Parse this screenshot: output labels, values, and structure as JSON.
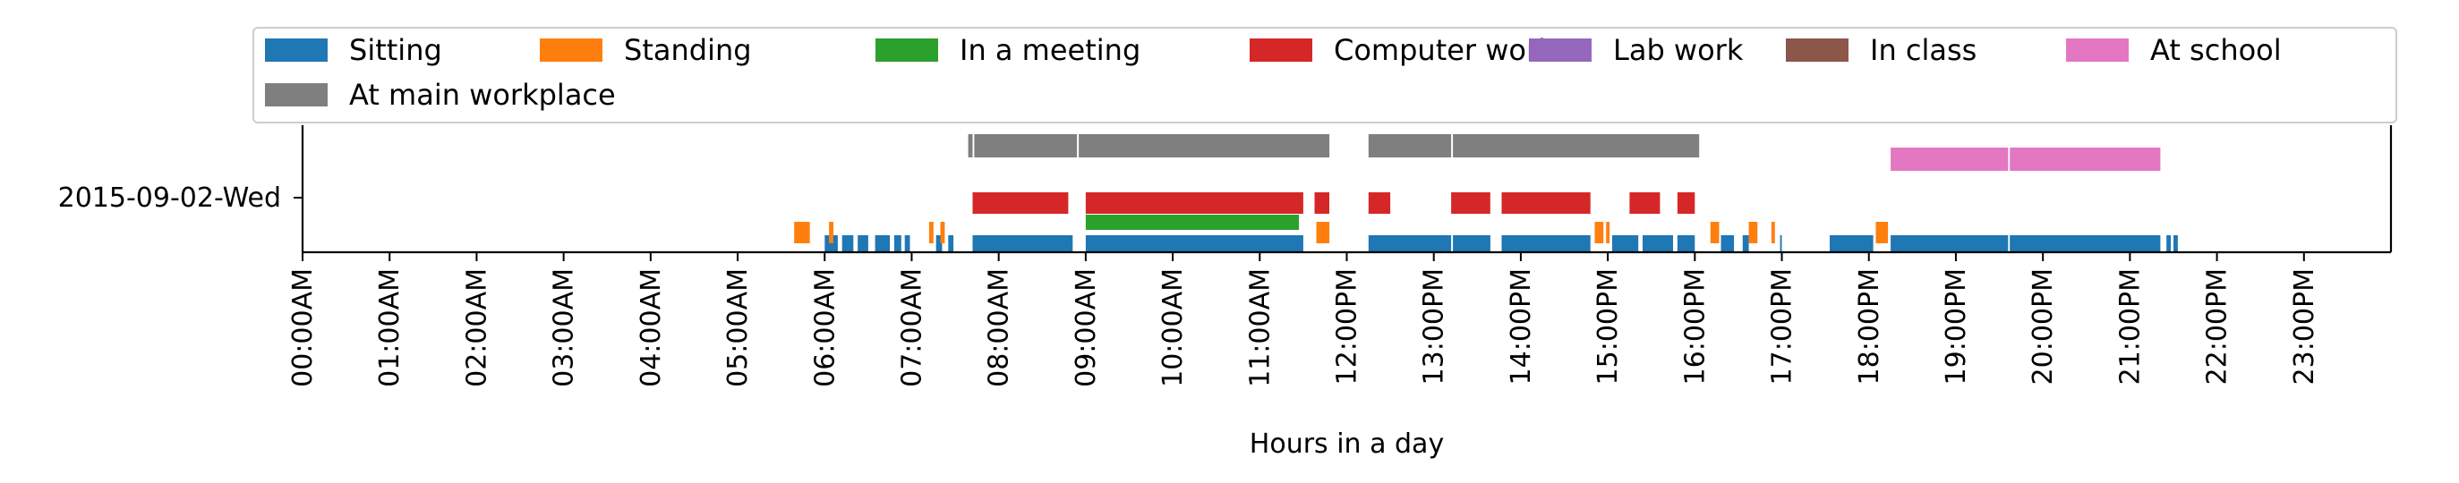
{
  "chart_data": {
    "type": "timeline",
    "xlabel": "Hours in a day",
    "xlim": [
      0,
      24
    ],
    "x_ticks": [
      "00:00AM",
      "01:00AM",
      "02:00AM",
      "03:00AM",
      "04:00AM",
      "05:00AM",
      "06:00AM",
      "07:00AM",
      "08:00AM",
      "09:00AM",
      "10:00AM",
      "11:00AM",
      "12:00PM",
      "13:00PM",
      "14:00PM",
      "15:00PM",
      "16:00PM",
      "17:00PM",
      "18:00PM",
      "19:00PM",
      "20:00PM",
      "21:00PM",
      "22:00PM",
      "23:00PM"
    ],
    "y_ticks": [
      "2015-09-02-Wed"
    ],
    "legend_position": "top",
    "series": [
      {
        "name": "Sitting",
        "color": "#1f77b4",
        "intervals": [
          [
            6.0,
            6.15
          ],
          [
            6.2,
            6.33
          ],
          [
            6.38,
            6.5
          ],
          [
            6.58,
            6.75
          ],
          [
            6.8,
            6.88
          ],
          [
            6.92,
            6.98
          ],
          [
            7.28,
            7.35
          ],
          [
            7.42,
            7.48
          ],
          [
            7.7,
            8.85
          ],
          [
            9.0,
            11.5
          ],
          [
            12.25,
            13.2
          ],
          [
            13.22,
            13.65
          ],
          [
            13.78,
            14.8
          ],
          [
            15.05,
            15.35
          ],
          [
            15.4,
            15.75
          ],
          [
            15.8,
            16.0
          ],
          [
            16.3,
            16.45
          ],
          [
            16.55,
            16.62
          ],
          [
            16.98,
            17.0
          ],
          [
            17.55,
            18.05
          ],
          [
            18.25,
            19.6
          ],
          [
            19.62,
            21.35
          ],
          [
            21.42,
            21.47
          ],
          [
            21.5,
            21.55
          ]
        ]
      },
      {
        "name": "Standing",
        "color": "#ff7f0e",
        "intervals": [
          [
            5.65,
            5.83
          ],
          [
            6.05,
            6.1
          ],
          [
            7.2,
            7.25
          ],
          [
            7.33,
            7.38
          ],
          [
            11.65,
            11.8
          ],
          [
            14.85,
            14.95
          ],
          [
            14.98,
            15.02
          ],
          [
            16.18,
            16.28
          ],
          [
            16.62,
            16.72
          ],
          [
            16.88,
            16.92
          ],
          [
            18.08,
            18.22
          ]
        ]
      },
      {
        "name": "In a meeting",
        "color": "#2ca02c",
        "intervals": [
          [
            9.0,
            11.45
          ]
        ]
      },
      {
        "name": "Computer work",
        "color": "#d62728",
        "intervals": [
          [
            7.7,
            8.8
          ],
          [
            9.0,
            11.5
          ],
          [
            11.63,
            11.8
          ],
          [
            12.25,
            12.5
          ],
          [
            13.2,
            13.65
          ],
          [
            13.78,
            14.8
          ],
          [
            15.25,
            15.6
          ],
          [
            15.8,
            16.0
          ]
        ]
      },
      {
        "name": "Lab work",
        "color": "#9467bd",
        "intervals": []
      },
      {
        "name": "In class",
        "color": "#8c564b",
        "intervals": []
      },
      {
        "name": "At school",
        "color": "#e377c2",
        "intervals": [
          [
            18.25,
            19.6
          ],
          [
            19.62,
            21.35
          ]
        ]
      },
      {
        "name": "At main workplace",
        "color": "#7f7f7f",
        "intervals": [
          [
            7.65,
            7.7
          ],
          [
            7.72,
            8.9
          ],
          [
            8.92,
            11.8
          ],
          [
            12.25,
            13.2
          ],
          [
            13.22,
            16.05
          ]
        ]
      }
    ]
  }
}
